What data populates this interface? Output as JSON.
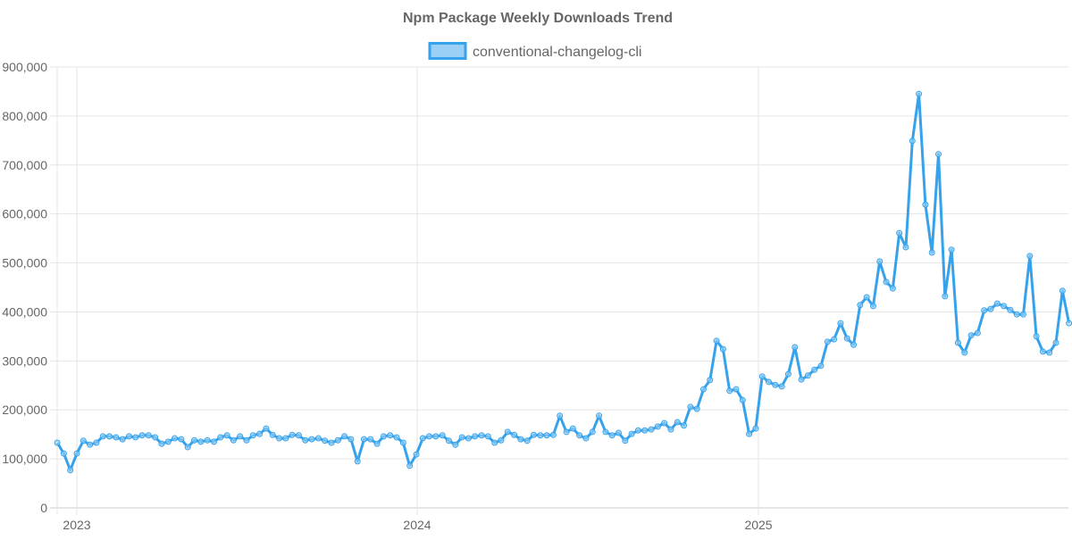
{
  "chart_data": {
    "type": "line",
    "title": "Npm Package Weekly Downloads Trend",
    "xlabel": "",
    "ylabel": "",
    "ylim": [
      0,
      900000
    ],
    "yticks": [
      "0",
      "100,000",
      "200,000",
      "300,000",
      "400,000",
      "500,000",
      "600,000",
      "700,000",
      "800,000",
      "900,000"
    ],
    "xticks": [
      {
        "label": "2023",
        "date": "2023-01-01"
      },
      {
        "label": "2024",
        "date": "2024-01-01"
      },
      {
        "label": "2025",
        "date": "2025-01-01"
      }
    ],
    "grid": true,
    "legend_position": "top",
    "colors": {
      "line": "#36a2eb",
      "fill": "#9ad0f5",
      "grid": "#e5e5e5",
      "text": "#666666"
    },
    "x": [
      "2022-12-11",
      "2022-12-18",
      "2022-12-25",
      "2023-01-01",
      "2023-01-08",
      "2023-01-15",
      "2023-01-22",
      "2023-01-29",
      "2023-02-05",
      "2023-02-12",
      "2023-02-19",
      "2023-02-26",
      "2023-03-05",
      "2023-03-12",
      "2023-03-19",
      "2023-03-26",
      "2023-04-02",
      "2023-04-09",
      "2023-04-16",
      "2023-04-23",
      "2023-04-30",
      "2023-05-07",
      "2023-05-14",
      "2023-05-21",
      "2023-05-28",
      "2023-06-04",
      "2023-06-11",
      "2023-06-18",
      "2023-06-25",
      "2023-07-02",
      "2023-07-09",
      "2023-07-16",
      "2023-07-23",
      "2023-07-30",
      "2023-08-06",
      "2023-08-13",
      "2023-08-20",
      "2023-08-27",
      "2023-09-03",
      "2023-09-10",
      "2023-09-17",
      "2023-09-24",
      "2023-10-01",
      "2023-10-08",
      "2023-10-15",
      "2023-10-22",
      "2023-10-29",
      "2023-11-05",
      "2023-11-12",
      "2023-11-19",
      "2023-11-26",
      "2023-12-03",
      "2023-12-10",
      "2023-12-17",
      "2023-12-24",
      "2023-12-31",
      "2024-01-07",
      "2024-01-14",
      "2024-01-21",
      "2024-01-28",
      "2024-02-04",
      "2024-02-11",
      "2024-02-18",
      "2024-02-25",
      "2024-03-03",
      "2024-03-10",
      "2024-03-17",
      "2024-03-24",
      "2024-03-31",
      "2024-04-07",
      "2024-04-14",
      "2024-04-21",
      "2024-04-28",
      "2024-05-05",
      "2024-05-12",
      "2024-05-19",
      "2024-05-26",
      "2024-06-02",
      "2024-06-09",
      "2024-06-16",
      "2024-06-23",
      "2024-06-30",
      "2024-07-07",
      "2024-07-14",
      "2024-07-21",
      "2024-07-28",
      "2024-08-04",
      "2024-08-11",
      "2024-08-18",
      "2024-08-25",
      "2024-09-01",
      "2024-09-08",
      "2024-09-15",
      "2024-09-22",
      "2024-09-29",
      "2024-10-06",
      "2024-10-13",
      "2024-10-20",
      "2024-10-27",
      "2024-11-03",
      "2024-11-10",
      "2024-11-17",
      "2024-11-24",
      "2024-12-01",
      "2024-12-08",
      "2024-12-15",
      "2024-12-22",
      "2024-12-29",
      "2025-01-05",
      "2025-01-12",
      "2025-01-19",
      "2025-01-26",
      "2025-02-02",
      "2025-02-09",
      "2025-02-16",
      "2025-02-23",
      "2025-03-02",
      "2025-03-09",
      "2025-03-16",
      "2025-03-23",
      "2025-03-30",
      "2025-04-06",
      "2025-04-13",
      "2025-04-20",
      "2025-04-27",
      "2025-05-04",
      "2025-05-11",
      "2025-05-18",
      "2025-05-25",
      "2025-06-01",
      "2025-06-08",
      "2025-06-15",
      "2025-06-22",
      "2025-06-29",
      "2025-07-06",
      "2025-07-13",
      "2025-07-20",
      "2025-07-27",
      "2025-08-03",
      "2025-08-10",
      "2025-08-17",
      "2025-08-24",
      "2025-08-31",
      "2025-09-07",
      "2025-09-14",
      "2025-09-21",
      "2025-09-28",
      "2025-10-05",
      "2025-10-12",
      "2025-10-19",
      "2025-10-26",
      "2025-11-02",
      "2025-11-09",
      "2025-11-16",
      "2025-11-23",
      "2025-11-30"
    ],
    "series": [
      {
        "name": "conventional-changelog-cli",
        "values": [
          133000,
          111000,
          77000,
          111000,
          137000,
          129000,
          133000,
          146000,
          146000,
          144000,
          140000,
          146000,
          144000,
          148000,
          148000,
          144000,
          131000,
          135000,
          142000,
          140000,
          124000,
          138000,
          135000,
          138000,
          135000,
          144000,
          148000,
          138000,
          146000,
          138000,
          148000,
          151000,
          162000,
          149000,
          142000,
          142000,
          149000,
          148000,
          138000,
          140000,
          142000,
          137000,
          133000,
          138000,
          146000,
          140000,
          95000,
          140000,
          140000,
          131000,
          146000,
          148000,
          144000,
          133000,
          86000,
          109000,
          142000,
          146000,
          146000,
          148000,
          137000,
          129000,
          144000,
          142000,
          146000,
          148000,
          146000,
          133000,
          138000,
          155000,
          149000,
          140000,
          137000,
          149000,
          148000,
          148000,
          149000,
          188000,
          155000,
          162000,
          148000,
          142000,
          155000,
          188000,
          155000,
          148000,
          153000,
          137000,
          151000,
          158000,
          158000,
          160000,
          166000,
          173000,
          160000,
          175000,
          168000,
          206000,
          202000,
          242000,
          261000,
          341000,
          324000,
          239000,
          242000,
          220000,
          151000,
          162000,
          268000,
          257000,
          251000,
          248000,
          273000,
          328000,
          262000,
          270000,
          282000,
          290000,
          339000,
          344000,
          377000,
          346000,
          333000,
          414000,
          430000,
          412000,
          503000,
          461000,
          448000,
          561000,
          532000,
          749000,
          845000,
          619000,
          521000,
          722000,
          432000,
          527000,
          337000,
          317000,
          352000,
          357000,
          403000,
          406000,
          417000,
          412000,
          404000,
          395000,
          395000,
          514000,
          350000,
          319000,
          317000,
          337000,
          443000,
          377000
        ]
      }
    ]
  }
}
